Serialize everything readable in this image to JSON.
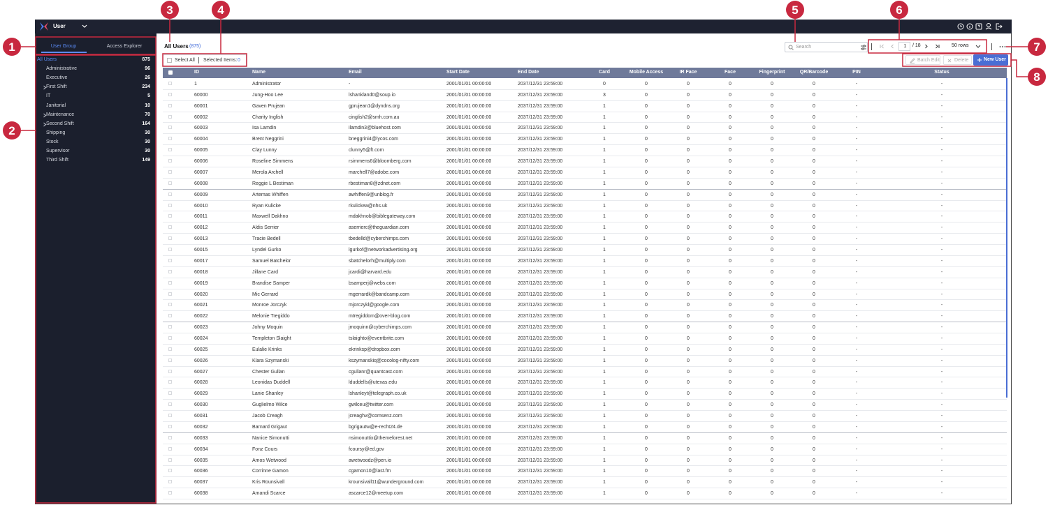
{
  "topbar": {
    "app_title": "User"
  },
  "sidebar": {
    "tabs": [
      "User Group",
      "Access Explorer"
    ],
    "active_tab": 0,
    "groups": [
      {
        "name": "All Users",
        "count": 875,
        "expandable": false
      },
      {
        "name": "Administrative",
        "count": 96,
        "expandable": false
      },
      {
        "name": "Executive",
        "count": 26,
        "expandable": false
      },
      {
        "name": "First Shift",
        "count": 234,
        "expandable": true
      },
      {
        "name": "IT",
        "count": 5,
        "expandable": false
      },
      {
        "name": "Janitorial",
        "count": 10,
        "expandable": false
      },
      {
        "name": "Maintenance",
        "count": 70,
        "expandable": true
      },
      {
        "name": "Second Shift",
        "count": 164,
        "expandable": true
      },
      {
        "name": "Shipping",
        "count": 30,
        "expandable": false
      },
      {
        "name": "Stock",
        "count": 30,
        "expandable": false
      },
      {
        "name": "Supervisor",
        "count": 30,
        "expandable": false
      },
      {
        "name": "Third Shift",
        "count": 149,
        "expandable": false
      }
    ]
  },
  "main": {
    "title": "All Users",
    "total": "(875)",
    "select_all": "Select All",
    "selected_items": "Selected Items:",
    "selected_count": "0",
    "search_placeholder": "Search",
    "page": "1",
    "page_total": "/ 18",
    "rows_per_page": "50 rows",
    "buttons": {
      "batch_edit": "Batch Edit",
      "delete": "Delete",
      "new_user": "New User"
    }
  },
  "table": {
    "columns": [
      "ID",
      "Name",
      "Email",
      "Start Date",
      "End Date",
      "Card",
      "Mobile Access",
      "IR Face",
      "Face",
      "Fingerprint",
      "QR/Barcode",
      "PIN",
      "Status"
    ],
    "rows": [
      [
        "1",
        "Administrator",
        "-",
        "2001/01/01 00:00:00",
        "2037/12/31 23:59:00",
        0,
        0,
        0,
        0,
        0,
        0,
        "-",
        "-"
      ],
      [
        "60000",
        "Jung-Hoo Lee",
        "lshankland0@soup.io",
        "2001/01/01 00:00:00",
        "2037/12/31 23:59:00",
        3,
        0,
        0,
        0,
        0,
        0,
        "-",
        "-"
      ],
      [
        "60001",
        "Gaven Prujean",
        "gprujean1@dyndns.org",
        "2001/01/01 00:00:00",
        "2037/12/31 23:59:00",
        1,
        0,
        0,
        0,
        0,
        0,
        "-",
        "-"
      ],
      [
        "60002",
        "Charity Inglish",
        "cinglish2@smh.com.au",
        "2001/01/01 00:00:00",
        "2037/12/31 23:59:00",
        1,
        0,
        0,
        0,
        0,
        0,
        "-",
        "-"
      ],
      [
        "60003",
        "Isa Lamdin",
        "ilamdin3@bluehost.com",
        "2001/01/01 00:00:00",
        "2037/12/31 23:59:00",
        1,
        0,
        0,
        0,
        0,
        0,
        "-",
        "-"
      ],
      [
        "60004",
        "Brent Neggrini",
        "bneggrini4@lycos.com",
        "2001/01/01 00:00:00",
        "2037/12/31 23:59:00",
        1,
        0,
        0,
        0,
        0,
        0,
        "-",
        "-"
      ],
      [
        "60005",
        "Clay Lunny",
        "clunny5@ft.com",
        "2001/01/01 00:00:00",
        "2037/12/31 23:59:00",
        1,
        0,
        0,
        0,
        0,
        0,
        "-",
        "-"
      ],
      [
        "60006",
        "Roseline Simmens",
        "rsimmens6@bloomberg.com",
        "2001/01/01 00:00:00",
        "2037/12/31 23:59:00",
        1,
        0,
        0,
        0,
        0,
        0,
        "-",
        "-"
      ],
      [
        "60007",
        "Merola Archell",
        "marchell7@adobe.com",
        "2001/01/01 00:00:00",
        "2037/12/31 23:59:00",
        1,
        0,
        0,
        0,
        0,
        0,
        "-",
        "-"
      ],
      [
        "60008",
        "Reggie L Bestiman",
        "rbestiman8@zdnet.com",
        "2001/01/01 00:00:00",
        "2037/12/31 23:59:00",
        1,
        0,
        0,
        0,
        0,
        0,
        "-",
        "-"
      ],
      [
        "60009",
        "Artemas Whiffen",
        "awhiffen9@unblog.fr",
        "2001/01/01 00:00:00",
        "2037/12/31 23:59:00",
        1,
        0,
        0,
        0,
        0,
        0,
        "-",
        "-"
      ],
      [
        "60010",
        "Ryan Kulicke",
        "rkulickea@nhs.uk",
        "2001/01/01 00:00:00",
        "2037/12/31 23:59:00",
        1,
        0,
        0,
        0,
        0,
        0,
        "-",
        "-"
      ],
      [
        "60011",
        "Maxwell Dakhno",
        "mdakhnob@biblegateway.com",
        "2001/01/01 00:00:00",
        "2037/12/31 23:59:00",
        1,
        0,
        0,
        0,
        0,
        0,
        "-",
        "-"
      ],
      [
        "60012",
        "Aldis Serrier",
        "aserrierc@theguardian.com",
        "2001/01/01 00:00:00",
        "2037/12/31 23:59:00",
        1,
        0,
        0,
        0,
        0,
        0,
        "-",
        "-"
      ],
      [
        "60013",
        "Tracie Bedell",
        "tbedelld@cyberchimps.com",
        "2001/01/01 00:00:00",
        "2037/12/31 23:59:00",
        1,
        0,
        0,
        0,
        0,
        0,
        "-",
        "-"
      ],
      [
        "60015",
        "Lyndel Gurko",
        "lgurkof@networkadvertising.org",
        "2001/01/01 00:00:00",
        "2037/12/31 23:59:00",
        1,
        0,
        0,
        0,
        0,
        0,
        "-",
        "-"
      ],
      [
        "60017",
        "Samuel Batchelor",
        "sbatchelorh@multiply.com",
        "2001/01/01 00:00:00",
        "2037/12/31 23:59:00",
        1,
        0,
        0,
        0,
        0,
        0,
        "-",
        "-"
      ],
      [
        "60018",
        "Jillane Card",
        "jcardi@harvard.edu",
        "2001/01/01 00:00:00",
        "2037/12/31 23:59:00",
        1,
        0,
        0,
        0,
        0,
        0,
        "-",
        "-"
      ],
      [
        "60019",
        "Brandise Samper",
        "bsamperj@webs.com",
        "2001/01/01 00:00:00",
        "2037/12/31 23:59:00",
        1,
        0,
        0,
        0,
        0,
        0,
        "-",
        "-"
      ],
      [
        "60020",
        "Mic Gerrard",
        "mgerrardk@bandcamp.com",
        "2001/01/01 00:00:00",
        "2037/12/31 23:59:00",
        1,
        0,
        0,
        0,
        0,
        0,
        "-",
        "-"
      ],
      [
        "60021",
        "Monroe Jorczyk",
        "mjorczykl@google.com",
        "2001/01/01 00:00:00",
        "2037/12/31 23:59:00",
        1,
        0,
        0,
        0,
        0,
        0,
        "-",
        "-"
      ],
      [
        "60022",
        "Melonie Tregiddo",
        "mtregiddom@over-blog.com",
        "2001/01/01 00:00:00",
        "2037/12/31 23:59:00",
        1,
        0,
        0,
        0,
        0,
        0,
        "-",
        "-"
      ],
      [
        "60023",
        "Johny Moquin",
        "jmoquinn@cyberchimps.com",
        "2001/01/01 00:00:00",
        "2037/12/31 23:59:00",
        1,
        0,
        0,
        0,
        0,
        0,
        "-",
        "-"
      ],
      [
        "60024",
        "Templeton Slaight",
        "tslaighto@eventbrite.com",
        "2001/01/01 00:00:00",
        "2037/12/31 23:59:00",
        1,
        0,
        0,
        0,
        0,
        0,
        "-",
        "-"
      ],
      [
        "60025",
        "Eulalie Krinks",
        "ekrinksp@dropbox.com",
        "2001/01/01 00:00:00",
        "2037/12/31 23:59:00",
        1,
        0,
        0,
        0,
        0,
        0,
        "-",
        "-"
      ],
      [
        "60026",
        "Klara Szymanski",
        "kszymanskiq@cocolog-nifty.com",
        "2001/01/01 00:00:00",
        "2037/12/31 23:59:00",
        1,
        0,
        0,
        0,
        0,
        0,
        "-",
        "-"
      ],
      [
        "60027",
        "Chester Gullan",
        "cgullanr@quantcast.com",
        "2001/01/01 00:00:00",
        "2037/12/31 23:59:00",
        1,
        0,
        0,
        0,
        0,
        0,
        "-",
        "-"
      ],
      [
        "60028",
        "Leonidas Duddell",
        "lduddells@utexas.edu",
        "2001/01/01 00:00:00",
        "2037/12/31 23:59:00",
        1,
        0,
        0,
        0,
        0,
        0,
        "-",
        "-"
      ],
      [
        "60029",
        "Lanie Shanley",
        "lshanleyt@telegraph.co.uk",
        "2001/01/01 00:00:00",
        "2037/12/31 23:59:00",
        1,
        0,
        0,
        0,
        0,
        0,
        "-",
        "-"
      ],
      [
        "60030",
        "Guglielmo Wilce",
        "gwilceu@twitter.com",
        "2001/01/01 00:00:00",
        "2037/12/31 23:59:00",
        1,
        0,
        0,
        0,
        0,
        0,
        "-",
        "-"
      ],
      [
        "60031",
        "Jacob Creagh",
        "jcreaghv@comsenz.com",
        "2001/01/01 00:00:00",
        "2037/12/31 23:59:00",
        1,
        0,
        0,
        0,
        0,
        0,
        "-",
        "-"
      ],
      [
        "60032",
        "Barnard Grigaut",
        "bgrigautw@e-recht24.de",
        "2001/01/01 00:00:00",
        "2037/12/31 23:59:00",
        1,
        0,
        0,
        0,
        0,
        0,
        "-",
        "-"
      ],
      [
        "60033",
        "Nanice Simonutti",
        "nsimonuttix@themeforest.net",
        "2001/01/01 00:00:00",
        "2037/12/31 23:59:00",
        1,
        0,
        0,
        0,
        0,
        0,
        "-",
        "-"
      ],
      [
        "60034",
        "Fonz Cours",
        "fcoursy@ed.gov",
        "2001/01/01 00:00:00",
        "2037/12/31 23:59:00",
        1,
        0,
        0,
        0,
        0,
        0,
        "-",
        "-"
      ],
      [
        "60035",
        "Amos Wetwood",
        "awetwoodz@pen.io",
        "2001/01/01 00:00:00",
        "2037/12/31 23:59:00",
        1,
        0,
        0,
        0,
        0,
        0,
        "-",
        "-"
      ],
      [
        "60036",
        "Corrinne Gamon",
        "cgamon10@last.fm",
        "2001/01/01 00:00:00",
        "2037/12/31 23:59:00",
        1,
        0,
        0,
        0,
        0,
        0,
        "-",
        "-"
      ],
      [
        "60037",
        "Kris Rounsivall",
        "krounsivall11@wunderground.com",
        "2001/01/01 00:00:00",
        "2037/12/31 23:59:00",
        1,
        0,
        0,
        0,
        0,
        0,
        "-",
        "-"
      ],
      [
        "60038",
        "Amandi Scarce",
        "ascarce12@meetup.com",
        "2001/01/01 00:00:00",
        "2037/12/31 23:59:00",
        1,
        0,
        0,
        0,
        0,
        0,
        "-",
        "-"
      ]
    ]
  },
  "callouts": [
    "1",
    "2",
    "3",
    "4",
    "5",
    "6",
    "7",
    "8"
  ]
}
